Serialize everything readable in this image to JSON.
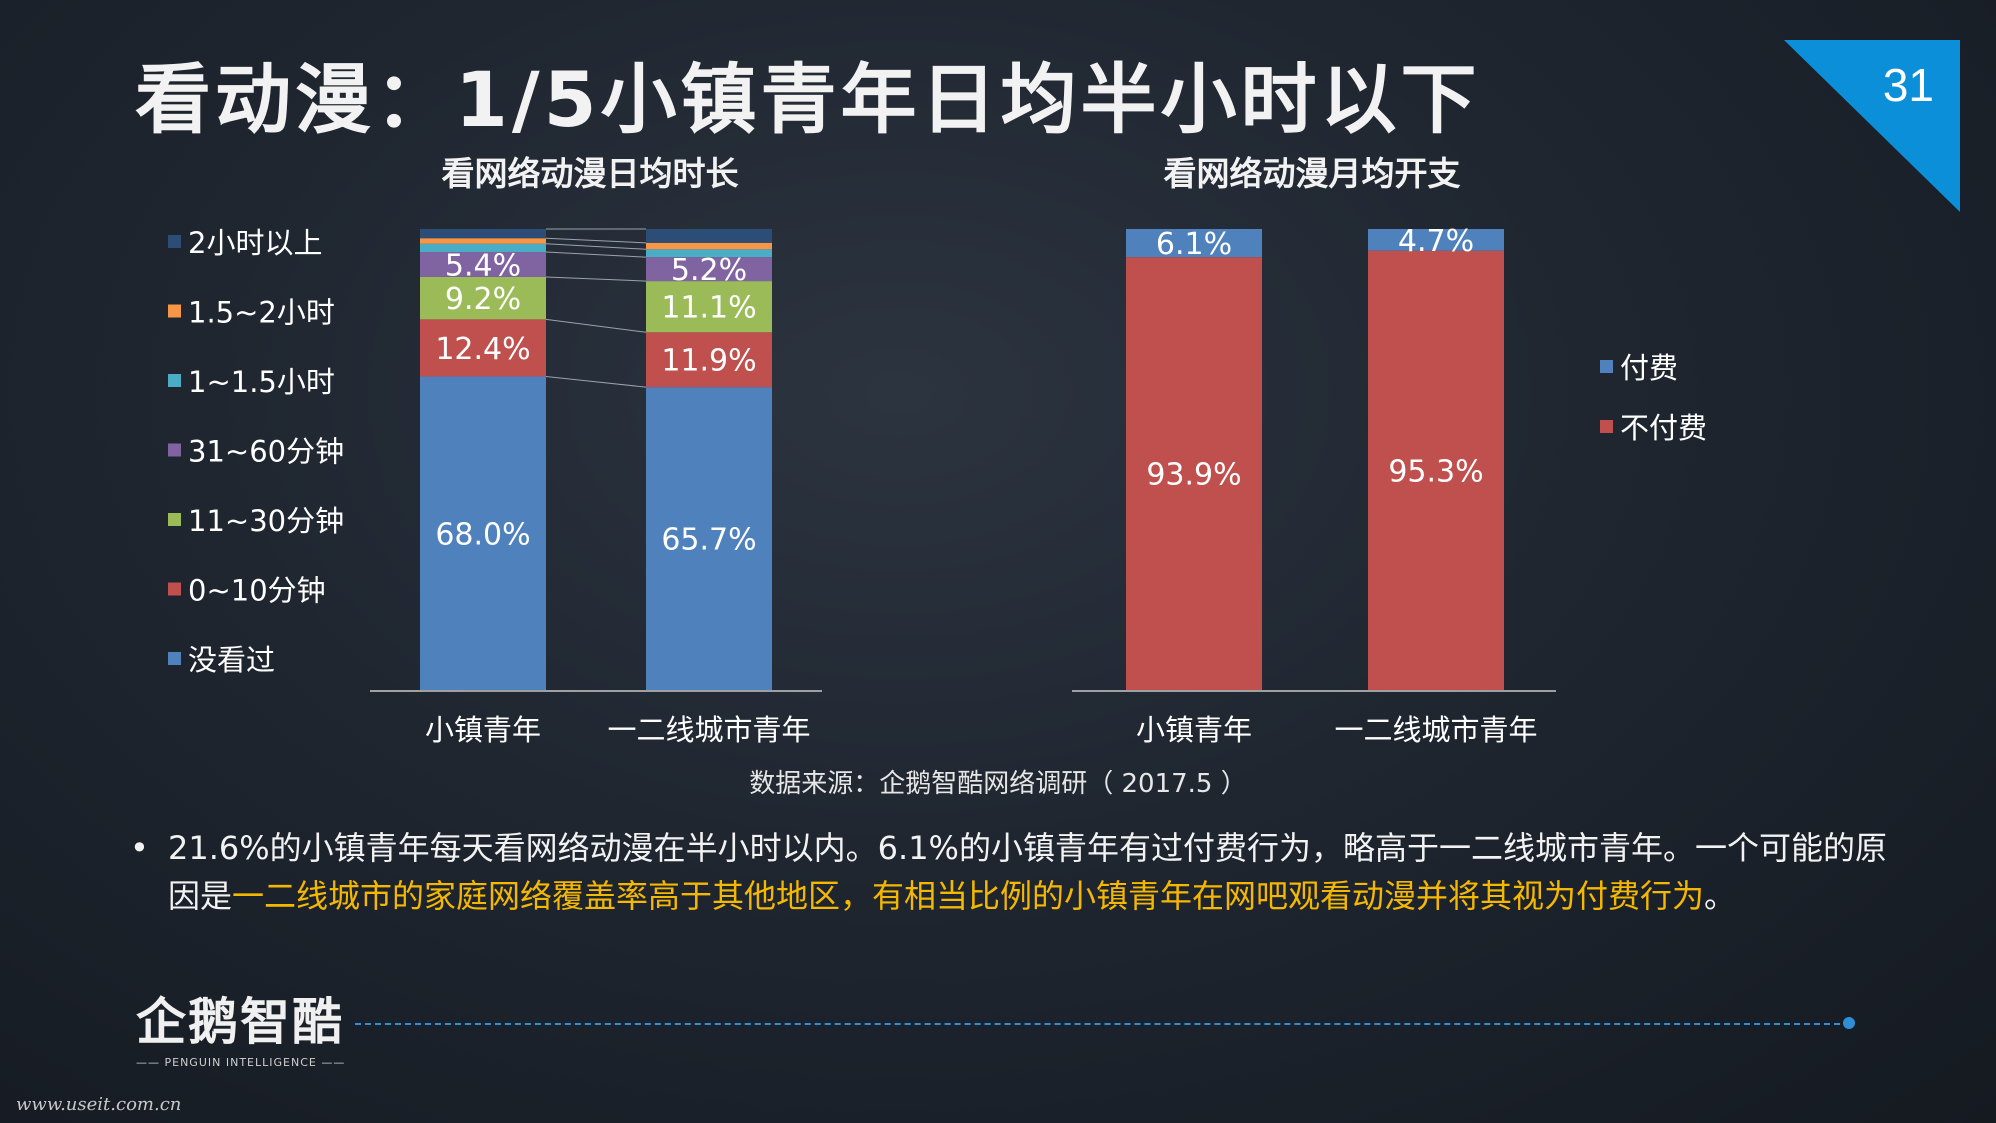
{
  "slide": {
    "title": "看动漫：1/5小镇青年日均半小时以下",
    "page_number": "31",
    "source": "数据来源：企鹅智酷网络调研（ 2017.5 ）",
    "bullet_symbol": "•",
    "bullet_text_plain": "21.6%的小镇青年每天看网络动漫在半小时以内。6.1%的小镇青年有过付费行为，略高于一二线城市青年。一个可能的原因是",
    "bullet_text_highlight": "一二线城市的家庭网络覆盖率高于其他地区，有相当比例的小镇青年在网吧观看动漫并将其视为付费行为",
    "bullet_text_end": "。",
    "logo_main": "企鹅智酷",
    "logo_sub": "—— PENGUIN INTELLIGENCE ——",
    "watermark": "www.useit.com.cn",
    "colors": {
      "accent_blue": "#0a8fd8",
      "highlight": "#f5b800",
      "dash": "#2f8fd6"
    }
  },
  "chart_data": [
    {
      "type": "bar",
      "stacked": true,
      "percent_stacked": true,
      "title": "看网络动漫日均时长",
      "categories": [
        "小镇青年",
        "一二线城市青年"
      ],
      "series": [
        {
          "name": "没看过",
          "color": "#4f81bd",
          "values": [
            68.0,
            65.7
          ],
          "labels": [
            "68.0%",
            "65.7%"
          ]
        },
        {
          "name": "0~10分钟",
          "color": "#c0504d",
          "values": [
            12.4,
            11.9
          ],
          "labels": [
            "12.4%",
            "11.9%"
          ]
        },
        {
          "name": "11~30分钟",
          "color": "#9bbb59",
          "values": [
            9.2,
            11.1
          ],
          "labels": [
            "9.2%",
            "11.1%"
          ]
        },
        {
          "name": "31~60分钟",
          "color": "#8064a2",
          "values": [
            5.4,
            5.2
          ],
          "labels": [
            "5.4%",
            "5.2%"
          ]
        },
        {
          "name": "1~1.5小时",
          "color": "#4bacc6",
          "values": [
            1.8,
            1.7
          ],
          "labels": [
            "",
            ""
          ]
        },
        {
          "name": "1.5~2小时",
          "color": "#f79646",
          "values": [
            1.2,
            1.4
          ],
          "labels": [
            "",
            ""
          ]
        },
        {
          "name": "2小时以上",
          "color": "#2c4d75",
          "values": [
            2.0,
            3.0
          ],
          "labels": [
            "",
            ""
          ]
        }
      ],
      "series_lines": true,
      "legend": "left"
    },
    {
      "type": "bar",
      "stacked": true,
      "percent_stacked": true,
      "title": "看网络动漫月均开支",
      "categories": [
        "小镇青年",
        "一二线城市青年"
      ],
      "series": [
        {
          "name": "不付费",
          "color": "#c0504d",
          "values": [
            93.9,
            95.3
          ],
          "labels": [
            "93.9%",
            "95.3%"
          ]
        },
        {
          "name": "付费",
          "color": "#4f81bd",
          "values": [
            6.1,
            4.7
          ],
          "labels": [
            "6.1%",
            "4.7%"
          ]
        }
      ],
      "legend": "right"
    }
  ]
}
